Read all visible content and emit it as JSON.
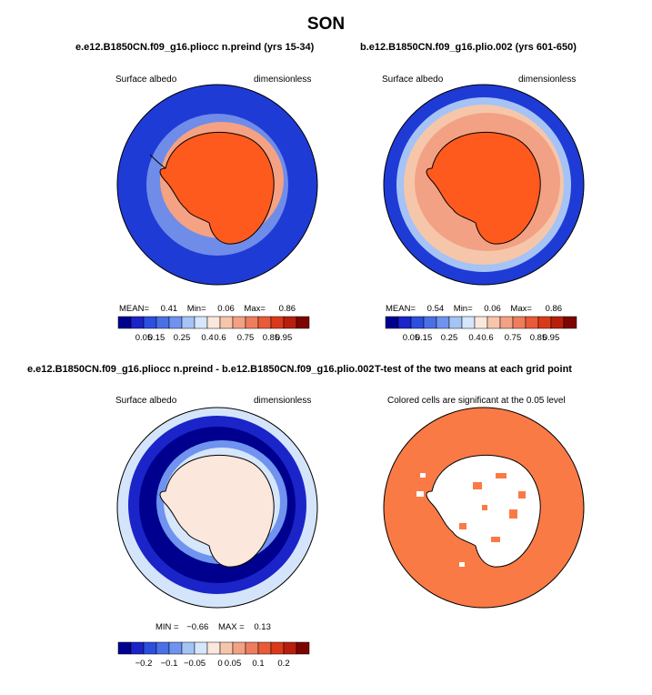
{
  "figure": {
    "title": "SON"
  },
  "panels": [
    {
      "title": "e.e12.B1850CN.f09_g16.pliocc n.preind (yrs 15-34)",
      "left_label": "Surface albedo",
      "right_label": "dimensionless",
      "stats": {
        "mean_label": "MEAN=",
        "mean": "0.41",
        "min_label": "Min=",
        "min": "0.06",
        "max_label": "Max=",
        "max": "0.86"
      }
    },
    {
      "title": "b.e12.B1850CN.f09_g16.plio.002 (yrs 601-650)",
      "left_label": "Surface albedo",
      "right_label": "dimensionless",
      "stats": {
        "mean_label": "MEAN=",
        "mean": "0.54",
        "min_label": "Min=",
        "min": "0.06",
        "max_label": "Max=",
        "max": "0.86"
      }
    },
    {
      "title": "e.e12.B1850CN.f09_g16.pliocc n.preind - b.e12.B1850CN.f09_g16.plio.002",
      "left_label": "Surface albedo",
      "right_label": "dimensionless",
      "stats": {
        "min_label": "MIN =",
        "min": "−0.66",
        "max_label": "MAX =",
        "max": "0.13"
      }
    },
    {
      "title": "T-test of the two means at each grid point",
      "subtitle": "Colored cells are significant at the 0.05 level"
    }
  ],
  "chart_data": [
    {
      "type": "heatmap",
      "projection": "south-polar stereographic",
      "field": "Surface albedo",
      "units": "dimensionless",
      "stats": {
        "mean": 0.41,
        "min": 0.06,
        "max": 0.86
      },
      "colorbar": {
        "colors": [
          "#00008f",
          "#1a24c8",
          "#2b4fde",
          "#4a70e6",
          "#6f93ee",
          "#a5c3f5",
          "#d6e6fb",
          "#fbe8dc",
          "#f6c6ab",
          "#f2a184",
          "#ee7d5e",
          "#e95a38",
          "#d93a1b",
          "#b71f0c",
          "#7e0400"
        ],
        "tick_labels": [
          "0.05",
          "0.15",
          "0.25",
          "0.4",
          "0.6",
          "0.75",
          "0.85",
          "0.95"
        ]
      }
    },
    {
      "type": "heatmap",
      "projection": "south-polar stereographic",
      "field": "Surface albedo",
      "units": "dimensionless",
      "stats": {
        "mean": 0.54,
        "min": 0.06,
        "max": 0.86
      },
      "colorbar": {
        "colors": [
          "#00008f",
          "#1a24c8",
          "#2b4fde",
          "#4a70e6",
          "#6f93ee",
          "#a5c3f5",
          "#d6e6fb",
          "#fbe8dc",
          "#f6c6ab",
          "#f2a184",
          "#ee7d5e",
          "#e95a38",
          "#d93a1b",
          "#b71f0c",
          "#7e0400"
        ],
        "tick_labels": [
          "0.05",
          "0.15",
          "0.25",
          "0.4",
          "0.6",
          "0.75",
          "0.85",
          "0.95"
        ]
      }
    },
    {
      "type": "heatmap",
      "projection": "south-polar stereographic",
      "field": "Surface albedo difference",
      "units": "dimensionless",
      "stats": {
        "min": -0.66,
        "max": 0.13
      },
      "colorbar": {
        "colors": [
          "#00008f",
          "#1a24c8",
          "#2b4fde",
          "#4a70e6",
          "#6f93ee",
          "#a5c3f5",
          "#d6e6fb",
          "#fbe8dc",
          "#f6c6ab",
          "#f2a184",
          "#ee7d5e",
          "#e95a38",
          "#d93a1b",
          "#b71f0c",
          "#7e0400"
        ],
        "tick_labels": [
          "−0.2",
          "−0.1",
          "−0.05",
          "0",
          "0.05",
          "0.1",
          "0.2"
        ]
      }
    },
    {
      "type": "heatmap",
      "projection": "south-polar stereographic",
      "field": "significance mask",
      "significant_color": "#fa7a45",
      "not_significant_color": "#ffffff"
    }
  ],
  "colors": {
    "ocean_deep_blue": "#1f3bd6",
    "land_orange": "#ff5a1e",
    "sea_ice_light": "#f9bca3",
    "diff_background": "#d4e5fb",
    "diff_land": "#fbe7db",
    "ttest_fill": "#fa7a45"
  }
}
